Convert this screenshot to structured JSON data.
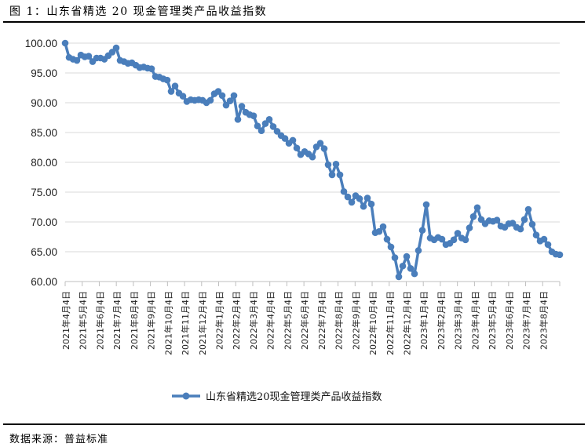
{
  "figure": {
    "title": "图 1：山东省精选 20 现金管理类产品收益指数",
    "source": "数据来源：普益标准"
  },
  "colors": {
    "series": "#4a7ebb",
    "grid": "#d9d9d9",
    "axis": "#bfbfbf"
  },
  "chart_data": {
    "type": "line",
    "title": "山东省精选20现金管理类产品收益指数",
    "xlabel": "",
    "ylabel": "",
    "ylim": [
      60,
      100
    ],
    "yticks": [
      "100.00",
      "95.00",
      "90.00",
      "85.00",
      "80.00",
      "75.00",
      "70.00",
      "65.00",
      "60.00"
    ],
    "grid": "horizontal",
    "legend_position": "bottom",
    "categories": [
      "2021年4月4日",
      "2021年5月4日",
      "2021年6月4日",
      "2021年7月4日",
      "2021年8月4日",
      "2021年9月4日",
      "2021年10月4日",
      "2021年11月4日",
      "2021年12月4日",
      "2022年1月4日",
      "2022年2月4日",
      "2022年3月4日",
      "2022年4月4日",
      "2022年5月4日",
      "2022年6月4日",
      "2022年7月4日",
      "2022年8月4日",
      "2022年9月4日",
      "2022年10月4日",
      "2022年11月4日",
      "2022年12月4日",
      "2023年1月4日",
      "2023年2月4日",
      "2023年3月4日",
      "2023年4月4日",
      "2023年5月4日",
      "2023年6月4日",
      "2023年7月4日",
      "2023年8月4日"
    ],
    "series": [
      {
        "name": "山东省精选20现金管理类产品收益指数",
        "values": [
          100.0,
          97.6,
          97.3,
          97.1,
          98.0,
          97.7,
          97.8,
          96.9,
          97.5,
          97.5,
          97.3,
          97.9,
          98.5,
          99.2,
          97.1,
          96.9,
          96.6,
          96.7,
          96.3,
          95.9,
          96.0,
          95.8,
          95.7,
          94.4,
          94.3,
          94.0,
          93.8,
          91.9,
          92.8,
          91.6,
          91.1,
          90.2,
          90.5,
          90.4,
          90.5,
          90.4,
          90.0,
          90.4,
          91.5,
          91.9,
          91.2,
          89.6,
          90.3,
          91.2,
          87.2,
          89.4,
          88.4,
          88.0,
          87.8,
          86.1,
          85.3,
          86.5,
          87.2,
          86.0,
          85.2,
          84.5,
          84.0,
          83.2,
          83.7,
          82.4,
          81.3,
          81.8,
          81.4,
          80.9,
          82.6,
          83.2,
          82.3,
          79.6,
          77.9,
          79.7,
          77.9,
          75.1,
          74.2,
          73.3,
          74.4,
          73.9,
          72.6,
          74.0,
          73.0,
          68.2,
          68.4,
          69.2,
          67.1,
          65.8,
          64.0,
          60.8,
          62.6,
          64.2,
          62.2,
          61.3,
          65.2,
          68.6,
          72.9,
          67.3,
          67.0,
          67.4,
          67.1,
          66.2,
          66.4,
          67.0,
          68.1,
          67.3,
          67.0,
          69.0,
          70.9,
          72.4,
          70.4,
          69.7,
          70.2,
          70.1,
          70.3,
          69.3,
          69.1,
          69.7,
          69.8,
          69.1,
          68.8,
          70.4,
          72.1,
          69.6,
          67.8,
          66.8,
          67.1,
          66.2,
          65.0,
          64.6,
          64.5
        ]
      }
    ]
  },
  "legend": {
    "items": [
      {
        "label": "山东省精选20现金管理类产品收益指数"
      }
    ]
  }
}
